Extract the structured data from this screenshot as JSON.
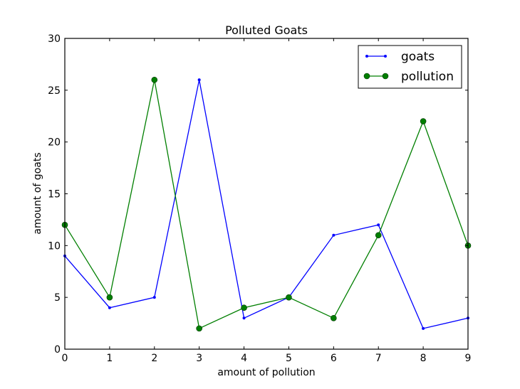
{
  "chart_data": {
    "type": "line",
    "title": "Polluted Goats",
    "xlabel": "amount of pollution",
    "ylabel": "amount of goats",
    "x": [
      0,
      1,
      2,
      3,
      4,
      5,
      6,
      7,
      8,
      9
    ],
    "xlim": [
      0,
      9
    ],
    "ylim": [
      0,
      30
    ],
    "xticks": [
      "0",
      "1",
      "2",
      "3",
      "4",
      "5",
      "6",
      "7",
      "8",
      "9"
    ],
    "yticks": [
      "0",
      "5",
      "10",
      "15",
      "20",
      "25",
      "30"
    ],
    "grid": false,
    "legend_position": "upper right",
    "series": [
      {
        "name": "goats",
        "color": "#0000ff",
        "marker": "small-dot",
        "values": [
          9,
          4,
          5,
          26,
          3,
          5,
          11,
          12,
          2,
          3
        ]
      },
      {
        "name": "pollution",
        "color": "#007f00",
        "marker": "circle",
        "values": [
          12,
          5,
          26,
          2,
          4,
          5,
          3,
          11,
          22,
          10
        ]
      }
    ]
  }
}
